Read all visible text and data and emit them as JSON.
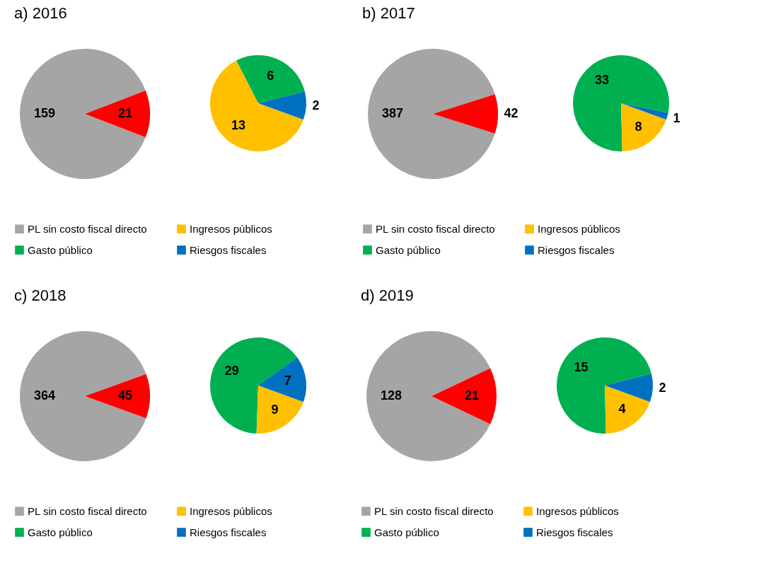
{
  "chart_data": [
    {
      "type": "pie",
      "title": "a)   2016",
      "categories": [
        "PL sin costo fiscal directo",
        null
      ],
      "values": [
        159,
        21
      ],
      "colors": [
        "#a5a5a5",
        "#ff0000"
      ],
      "data_labels": true,
      "legend": "bottom"
    },
    {
      "type": "pie",
      "categories": [
        "Gasto público",
        "Riesgos fiscales",
        "Ingresos públicos"
      ],
      "values": [
        6,
        2,
        13
      ],
      "colors": [
        "#00b050",
        "#0070c0",
        "#ffc000"
      ],
      "data_labels": true,
      "legend": "bottom"
    },
    {
      "type": "pie",
      "title": "b)   2017",
      "categories": [
        "PL sin costo fiscal directo",
        null
      ],
      "values": [
        387,
        42
      ],
      "colors": [
        "#a5a5a5",
        "#ff0000"
      ],
      "data_labels": true,
      "legend": "bottom"
    },
    {
      "type": "pie",
      "categories": [
        "Gasto público",
        "Riesgos fiscales",
        "Ingresos públicos"
      ],
      "values": [
        33,
        1,
        8
      ],
      "colors": [
        "#00b050",
        "#0070c0",
        "#ffc000"
      ],
      "data_labels": true,
      "legend": "bottom"
    },
    {
      "type": "pie",
      "title": "c)   2018",
      "categories": [
        "PL sin costo fiscal directo",
        null
      ],
      "values": [
        364,
        45
      ],
      "colors": [
        "#a5a5a5",
        "#ff0000"
      ],
      "data_labels": true,
      "legend": "bottom"
    },
    {
      "type": "pie",
      "categories": [
        "Gasto público",
        "Riesgos fiscales",
        "Ingresos públicos"
      ],
      "values": [
        29,
        7,
        9
      ],
      "colors": [
        "#00b050",
        "#0070c0",
        "#ffc000"
      ],
      "data_labels": true,
      "legend": "bottom"
    },
    {
      "type": "pie",
      "title": "d)   2019",
      "categories": [
        "PL sin costo fiscal directo",
        null
      ],
      "values": [
        128,
        21
      ],
      "colors": [
        "#a5a5a5",
        "#ff0000"
      ],
      "data_labels": true,
      "legend": "bottom"
    },
    {
      "type": "pie",
      "categories": [
        "Gasto público",
        "Riesgos fiscales",
        "Ingresos públicos"
      ],
      "values": [
        15,
        2,
        4
      ],
      "colors": [
        "#00b050",
        "#0070c0",
        "#ffc000"
      ],
      "data_labels": true,
      "legend": "bottom"
    }
  ]
}
